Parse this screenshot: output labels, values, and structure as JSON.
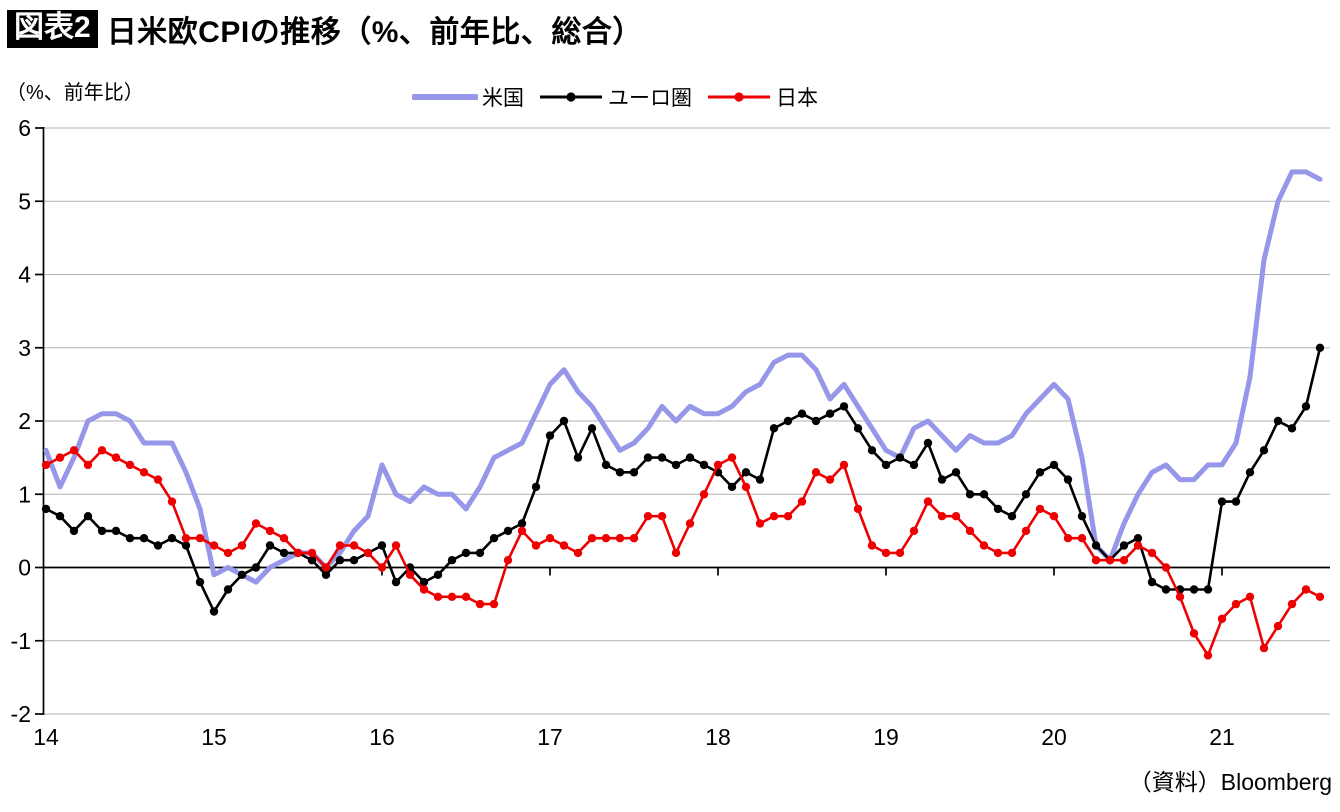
{
  "header": {
    "figure_label": "図表2",
    "title": "日米欧CPIの推移（%、前年比、総合）"
  },
  "axis_note": "（%、前年比）",
  "source": "（資料）Bloomberg",
  "colors": {
    "us": "#9697e8",
    "euro": "#000000",
    "japan": "#ee0000",
    "gridline": "#b0b0b0",
    "axis": "#000000"
  },
  "legend": [
    {
      "label": "米国",
      "color": "#9697e8",
      "marker": false,
      "thick": true
    },
    {
      "label": "ユーロ圏",
      "color": "#000000",
      "marker": true,
      "thick": false
    },
    {
      "label": "日本",
      "color": "#ee0000",
      "marker": true,
      "thick": false
    }
  ],
  "chart_data": {
    "type": "line",
    "title": "日米欧CPIの推移（%、前年比、総合）",
    "ylabel": "（%、前年比）",
    "frequency": "monthly",
    "x_start": "2014-01",
    "x_end": "2021-08",
    "n_points": 92,
    "x_tick_labels": [
      "14",
      "15",
      "16",
      "17",
      "18",
      "19",
      "20",
      "21"
    ],
    "y_ticks": [
      6,
      5,
      4,
      3,
      2,
      1,
      0,
      -1,
      -2
    ],
    "ylim": [
      -2,
      6
    ],
    "grid": true,
    "legend_position": "top",
    "series": [
      {
        "name": "米国",
        "color": "#9697e8",
        "marker": false,
        "values": [
          1.6,
          1.1,
          1.5,
          2.0,
          2.1,
          2.1,
          2.0,
          1.7,
          1.7,
          1.7,
          1.3,
          0.8,
          -0.1,
          0.0,
          -0.1,
          -0.2,
          0.0,
          0.1,
          0.2,
          0.2,
          0.0,
          0.2,
          0.5,
          0.7,
          1.4,
          1.0,
          0.9,
          1.1,
          1.0,
          1.0,
          0.8,
          1.1,
          1.5,
          1.6,
          1.7,
          2.1,
          2.5,
          2.7,
          2.4,
          2.2,
          1.9,
          1.6,
          1.7,
          1.9,
          2.2,
          2.0,
          2.2,
          2.1,
          2.1,
          2.2,
          2.4,
          2.5,
          2.8,
          2.9,
          2.9,
          2.7,
          2.3,
          2.5,
          2.2,
          1.9,
          1.6,
          1.5,
          1.9,
          2.0,
          1.8,
          1.6,
          1.8,
          1.7,
          1.7,
          1.8,
          2.1,
          2.3,
          2.5,
          2.3,
          1.5,
          0.3,
          0.1,
          0.6,
          1.0,
          1.3,
          1.4,
          1.2,
          1.2,
          1.4,
          1.4,
          1.7,
          2.6,
          4.2,
          5.0,
          5.4,
          5.4,
          5.3
        ]
      },
      {
        "name": "ユーロ圏",
        "color": "#000000",
        "marker": true,
        "values": [
          0.8,
          0.7,
          0.5,
          0.7,
          0.5,
          0.5,
          0.4,
          0.4,
          0.3,
          0.4,
          0.3,
          -0.2,
          -0.6,
          -0.3,
          -0.1,
          0.0,
          0.3,
          0.2,
          0.2,
          0.1,
          -0.1,
          0.1,
          0.1,
          0.2,
          0.3,
          -0.2,
          0.0,
          -0.2,
          -0.1,
          0.1,
          0.2,
          0.2,
          0.4,
          0.5,
          0.6,
          1.1,
          1.8,
          2.0,
          1.5,
          1.9,
          1.4,
          1.3,
          1.3,
          1.5,
          1.5,
          1.4,
          1.5,
          1.4,
          1.3,
          1.1,
          1.3,
          1.2,
          1.9,
          2.0,
          2.1,
          2.0,
          2.1,
          2.2,
          1.9,
          1.6,
          1.4,
          1.5,
          1.4,
          1.7,
          1.2,
          1.3,
          1.0,
          1.0,
          0.8,
          0.7,
          1.0,
          1.3,
          1.4,
          1.2,
          0.7,
          0.3,
          0.1,
          0.3,
          0.4,
          -0.2,
          -0.3,
          -0.3,
          -0.3,
          -0.3,
          0.9,
          0.9,
          1.3,
          1.6,
          2.0,
          1.9,
          2.2,
          3.0
        ]
      },
      {
        "name": "日本",
        "color": "#ee0000",
        "marker": true,
        "values": [
          1.4,
          1.5,
          1.6,
          1.4,
          1.6,
          1.5,
          1.4,
          1.3,
          1.2,
          0.9,
          0.4,
          0.4,
          0.3,
          0.2,
          0.3,
          0.6,
          0.5,
          0.4,
          0.2,
          0.2,
          0.0,
          0.3,
          0.3,
          0.2,
          0.0,
          0.3,
          -0.1,
          -0.3,
          -0.4,
          -0.4,
          -0.4,
          -0.5,
          -0.5,
          0.1,
          0.5,
          0.3,
          0.4,
          0.3,
          0.2,
          0.4,
          0.4,
          0.4,
          0.4,
          0.7,
          0.7,
          0.2,
          0.6,
          1.0,
          1.4,
          1.5,
          1.1,
          0.6,
          0.7,
          0.7,
          0.9,
          1.3,
          1.2,
          1.4,
          0.8,
          0.3,
          0.2,
          0.2,
          0.5,
          0.9,
          0.7,
          0.7,
          0.5,
          0.3,
          0.2,
          0.2,
          0.5,
          0.8,
          0.7,
          0.4,
          0.4,
          0.1,
          0.1,
          0.1,
          0.3,
          0.2,
          0.0,
          -0.4,
          -0.9,
          -1.2,
          -0.7,
          -0.5,
          -0.4,
          -1.1,
          -0.8,
          -0.5,
          -0.3,
          -0.4
        ]
      }
    ]
  }
}
